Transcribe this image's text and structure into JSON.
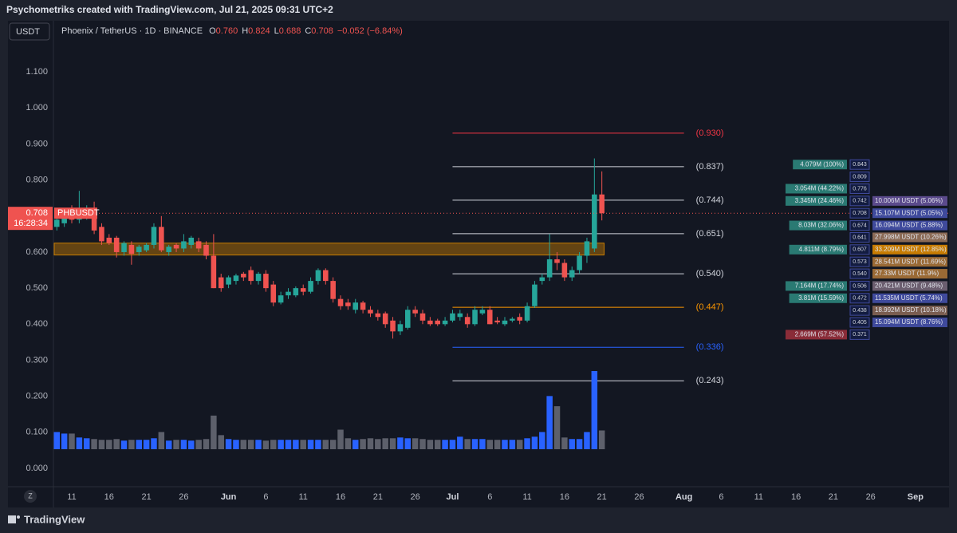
{
  "header": {
    "text": "Psychometriks created with TradingView.com, Jul 21, 2025 09:31 UTC+2"
  },
  "footer": {
    "brand": "TradingView",
    "zoom": "Z"
  },
  "chart_data": {
    "type": "candlestick",
    "currency_button": "USDT",
    "title": "Phoenix / TetherUS · 1D · BINANCE",
    "legend": [
      {
        "key": "O",
        "value": "0.760"
      },
      {
        "key": "H",
        "value": "0.824"
      },
      {
        "key": "L",
        "value": "0.688"
      },
      {
        "key": "C",
        "value": "0.708"
      }
    ],
    "change": "−0.052 (−6.84%)",
    "symbol": "PHBUSDT",
    "last_price": 0.708,
    "last_price_label": "0.708",
    "countdown": "16:28:34",
    "up_color": "#26a69a",
    "down_color": "#ef5350",
    "grid": false,
    "xlim": [
      8.65,
      128.5
    ],
    "ylim": [
      -0.051,
      1.242
    ],
    "yticks": [
      {
        "value": 1.1,
        "label": "1.100"
      },
      {
        "value": 1.0,
        "label": "1.000"
      },
      {
        "value": 0.9,
        "label": "0.900"
      },
      {
        "value": 0.8,
        "label": "0.800"
      },
      {
        "value": 0.7,
        "label": "0.700"
      },
      {
        "value": 0.6,
        "label": "0.600"
      },
      {
        "value": 0.5,
        "label": "0.500"
      },
      {
        "value": 0.4,
        "label": "0.400"
      },
      {
        "value": 0.3,
        "label": "0.300"
      },
      {
        "value": 0.2,
        "label": "0.200"
      },
      {
        "value": 0.1,
        "label": "0.100"
      },
      {
        "value": 0,
        "label": "0.000"
      }
    ],
    "xticks": [
      11,
      16,
      21,
      26,
      {
        "value": 32,
        "label": "Jun"
      },
      {
        "value": 37,
        "label": "6"
      },
      {
        "value": 42,
        "label": "11"
      },
      {
        "value": 47,
        "label": "16"
      },
      {
        "value": 52,
        "label": "21"
      },
      {
        "value": 57,
        "label": "26"
      },
      {
        "value": 62,
        "label": "Jul"
      },
      {
        "value": 67,
        "label": "6"
      },
      {
        "value": 72,
        "label": "11"
      },
      {
        "value": 77,
        "label": "16"
      },
      {
        "value": 82,
        "label": "21"
      },
      {
        "value": 87,
        "label": "26"
      },
      {
        "value": 93,
        "label": "Aug"
      },
      {
        "value": 98,
        "label": "6"
      },
      {
        "value": 103,
        "label": "11"
      },
      {
        "value": 108,
        "label": "16"
      },
      {
        "value": 113,
        "label": "21"
      },
      {
        "value": 118,
        "label": "26"
      },
      {
        "value": 124,
        "label": "Sep"
      }
    ],
    "x": [
      9,
      10,
      11,
      12,
      13,
      14,
      15,
      16,
      17,
      18,
      19,
      20,
      21,
      22,
      23,
      24,
      25,
      26,
      27,
      28,
      29,
      30,
      31,
      32,
      33,
      34,
      35,
      36,
      37,
      38,
      39,
      40,
      41,
      42,
      43,
      44,
      45,
      46,
      47,
      48,
      49,
      50,
      51,
      52,
      53,
      54,
      55,
      56,
      57,
      58,
      59,
      60,
      61,
      62,
      63,
      64,
      65,
      66,
      67,
      68,
      69,
      70,
      71,
      72,
      73,
      74,
      75,
      76,
      77,
      78,
      79,
      80,
      81,
      82
    ],
    "open": [
      0.67,
      0.68,
      0.7,
      0.69,
      0.7,
      0.72,
      0.67,
      0.64,
      0.64,
      0.6,
      0.62,
      0.6,
      0.605,
      0.62,
      0.67,
      0.6,
      0.62,
      0.61,
      0.62,
      0.63,
      0.62,
      0.59,
      0.53,
      0.51,
      0.52,
      0.54,
      0.55,
      0.52,
      0.54,
      0.51,
      0.46,
      0.48,
      0.48,
      0.5,
      0.49,
      0.52,
      0.55,
      0.52,
      0.47,
      0.46,
      0.44,
      0.46,
      0.44,
      0.43,
      0.43,
      0.41,
      0.38,
      0.39,
      0.44,
      0.43,
      0.41,
      0.41,
      0.4,
      0.41,
      0.42,
      0.42,
      0.4,
      0.43,
      0.44,
      0.41,
      0.4,
      0.41,
      0.42,
      0.41,
      0.45,
      0.52,
      0.53,
      0.58,
      0.57,
      0.53,
      0.55,
      0.59,
      0.61,
      0.76
    ],
    "high": [
      0.7,
      0.71,
      0.73,
      0.77,
      0.73,
      0.74,
      0.68,
      0.65,
      0.645,
      0.63,
      0.63,
      0.62,
      0.625,
      0.68,
      0.7,
      0.62,
      0.625,
      0.65,
      0.645,
      0.64,
      0.63,
      0.65,
      0.54,
      0.535,
      0.54,
      0.545,
      0.56,
      0.545,
      0.55,
      0.52,
      0.49,
      0.5,
      0.505,
      0.51,
      0.53,
      0.555,
      0.555,
      0.53,
      0.48,
      0.47,
      0.47,
      0.465,
      0.45,
      0.44,
      0.435,
      0.42,
      0.41,
      0.45,
      0.45,
      0.44,
      0.42,
      0.415,
      0.42,
      0.44,
      0.44,
      0.43,
      0.45,
      0.45,
      0.45,
      0.42,
      0.42,
      0.42,
      0.43,
      0.46,
      0.52,
      0.54,
      0.65,
      0.6,
      0.58,
      0.56,
      0.6,
      0.64,
      0.86,
      0.824
    ],
    "low": [
      0.66,
      0.67,
      0.68,
      0.68,
      0.69,
      0.65,
      0.62,
      0.62,
      0.585,
      0.59,
      0.565,
      0.59,
      0.6,
      0.61,
      0.6,
      0.59,
      0.6,
      0.6,
      0.61,
      0.6,
      0.58,
      0.5,
      0.49,
      0.5,
      0.51,
      0.52,
      0.51,
      0.51,
      0.49,
      0.45,
      0.455,
      0.47,
      0.475,
      0.48,
      0.485,
      0.51,
      0.51,
      0.46,
      0.44,
      0.44,
      0.43,
      0.43,
      0.42,
      0.41,
      0.39,
      0.36,
      0.37,
      0.385,
      0.42,
      0.4,
      0.395,
      0.395,
      0.395,
      0.405,
      0.41,
      0.39,
      0.395,
      0.425,
      0.4,
      0.4,
      0.395,
      0.405,
      0.4,
      0.405,
      0.445,
      0.51,
      0.52,
      0.55,
      0.52,
      0.52,
      0.54,
      0.57,
      0.6,
      0.688
    ],
    "close": [
      0.69,
      0.7,
      0.69,
      0.72,
      0.72,
      0.66,
      0.63,
      0.625,
      0.6,
      0.625,
      0.595,
      0.615,
      0.62,
      0.67,
      0.605,
      0.615,
      0.61,
      0.63,
      0.64,
      0.61,
      0.59,
      0.5,
      0.5,
      0.53,
      0.535,
      0.53,
      0.52,
      0.54,
      0.5,
      0.46,
      0.48,
      0.49,
      0.5,
      0.49,
      0.52,
      0.55,
      0.52,
      0.47,
      0.45,
      0.45,
      0.46,
      0.44,
      0.43,
      0.42,
      0.4,
      0.38,
      0.4,
      0.44,
      0.43,
      0.41,
      0.4,
      0.4,
      0.41,
      0.43,
      0.43,
      0.4,
      0.44,
      0.44,
      0.4,
      0.405,
      0.41,
      0.415,
      0.41,
      0.45,
      0.51,
      0.53,
      0.58,
      0.57,
      0.53,
      0.55,
      0.59,
      0.63,
      0.76,
      0.708
    ],
    "volume_up_color": "#2962ff",
    "volume_down_color": "#5d606b",
    "volume": [
      22,
      20,
      20,
      15,
      14,
      13,
      12,
      12,
      13,
      11,
      12,
      12,
      12,
      14,
      22,
      11,
      12,
      12,
      11,
      12,
      13,
      43,
      18,
      13,
      12,
      12,
      12,
      12,
      11,
      12,
      12,
      12,
      12,
      12,
      12,
      12,
      12,
      12,
      25,
      14,
      12,
      13,
      14,
      13,
      14,
      14,
      15,
      14,
      14,
      13,
      12,
      12,
      12,
      12,
      16,
      13,
      13,
      13,
      12,
      12,
      12,
      12,
      12,
      14,
      16,
      22,
      68,
      55,
      15,
      13,
      13,
      22,
      100,
      24
    ],
    "fib_x_from": 62,
    "fib_x_to": 93,
    "fib_levels": [
      {
        "value": 0.93,
        "label": "(0.930)",
        "color": "#f23645"
      },
      {
        "value": 0.837,
        "label": "(0.837)",
        "color": "#d1d4dc"
      },
      {
        "value": 0.744,
        "label": "(0.744)",
        "color": "#d1d4dc"
      },
      {
        "value": 0.651,
        "label": "(0.651)",
        "color": "#d1d4dc"
      },
      {
        "value": 0.54,
        "label": "(0.540)",
        "color": "#d1d4dc"
      },
      {
        "value": 0.447,
        "label": "(0.447)",
        "color": "#ff9800"
      },
      {
        "value": 0.336,
        "label": "(0.336)",
        "color": "#2962ff"
      },
      {
        "value": 0.243,
        "label": "(0.243)",
        "color": "#d1d4dc"
      }
    ],
    "zone": {
      "low": 0.592,
      "high": 0.625,
      "x_to": 82.3,
      "color": "#c77c02"
    },
    "profile": [
      {
        "price": "0.843",
        "left": "4.079M (100%)",
        "left_color": "#2a7a73"
      },
      {
        "price": "0.809"
      },
      {
        "price": "0.776",
        "left": "3.054M (44.22%)",
        "left_color": "#2a7a73"
      },
      {
        "price": "0.742",
        "left": "3.345M (24.46%)",
        "left_color": "#2a7a73",
        "right": "10.006M USDT (5.06%)",
        "right_color": "#5b4a8c"
      },
      {
        "price": "0.708",
        "right": "15.107M USDT (5.05%)",
        "right_color": "#3f4a9c"
      },
      {
        "price": "0.674",
        "left": "8.03M (32.06%)",
        "left_color": "#2a7a73",
        "right": "16.094M USDT (5.88%)",
        "right_color": "#3f4a9c"
      },
      {
        "price": "0.641",
        "right": "27.998M USDT (10.26%)",
        "right_color": "#8a6a55"
      },
      {
        "price": "0.607",
        "left": "4.811M (8.79%)",
        "left_color": "#2a7a73",
        "right": "33.209M USDT (12.85%)",
        "right_color": "#c77c02"
      },
      {
        "price": "0.573",
        "right": "28.541M USDT (11.69%)",
        "right_color": "#9a6a35"
      },
      {
        "price": "0.540",
        "right": "27.33M USDT (11.9%)",
        "right_color": "#9a6a35"
      },
      {
        "price": "0.506",
        "left": "7.164M (17.74%)",
        "left_color": "#2a7a73",
        "right": "20.421M USDT (9.48%)",
        "right_color": "#6b5e6f"
      },
      {
        "price": "0.472",
        "left": "3.81M (15.59%)",
        "left_color": "#2a7a73",
        "right": "11.535M USDT (5.74%)",
        "right_color": "#3f4a9c"
      },
      {
        "price": "0.438",
        "right": "18.992M USDT (10.18%)",
        "right_color": "#7a5d50"
      },
      {
        "price": "0.405",
        "right": "15.094M USDT (8.76%)",
        "right_color": "#3f4a9c"
      },
      {
        "price": "0.371",
        "left": "2.669M (57.52%)",
        "left_color": "#8a2c38"
      }
    ]
  }
}
